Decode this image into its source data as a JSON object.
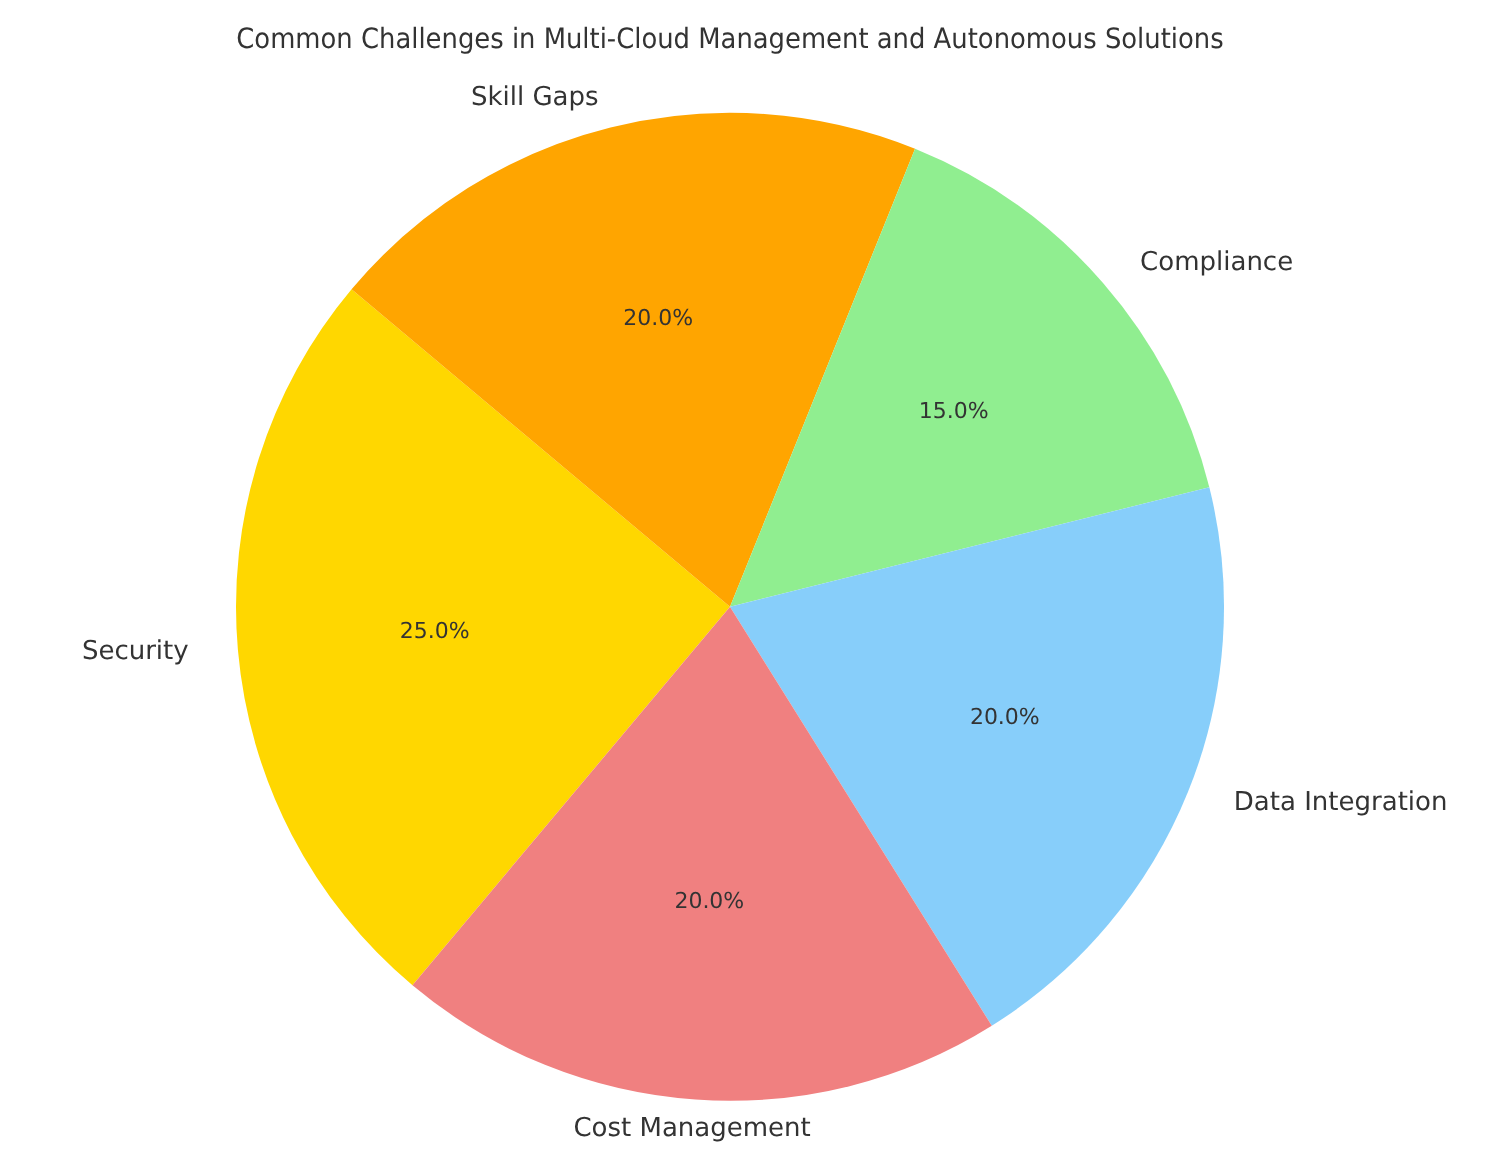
{
  "chart_data": {
    "type": "pie",
    "title": "Common Challenges in Multi-Cloud Management and Autonomous Solutions",
    "categories": [
      "Security",
      "Skill Gaps",
      "Compliance",
      "Data Integration",
      "Cost Management"
    ],
    "values": [
      25,
      20,
      15,
      20,
      20
    ],
    "colors": [
      "#ffd700",
      "#ffa500",
      "#90ee90",
      "#87cefa",
      "#f08080"
    ],
    "value_labels": [
      "25.0%",
      "20.0%",
      "15.0%",
      "20.0%",
      "20.0%"
    ],
    "legend": false
  }
}
